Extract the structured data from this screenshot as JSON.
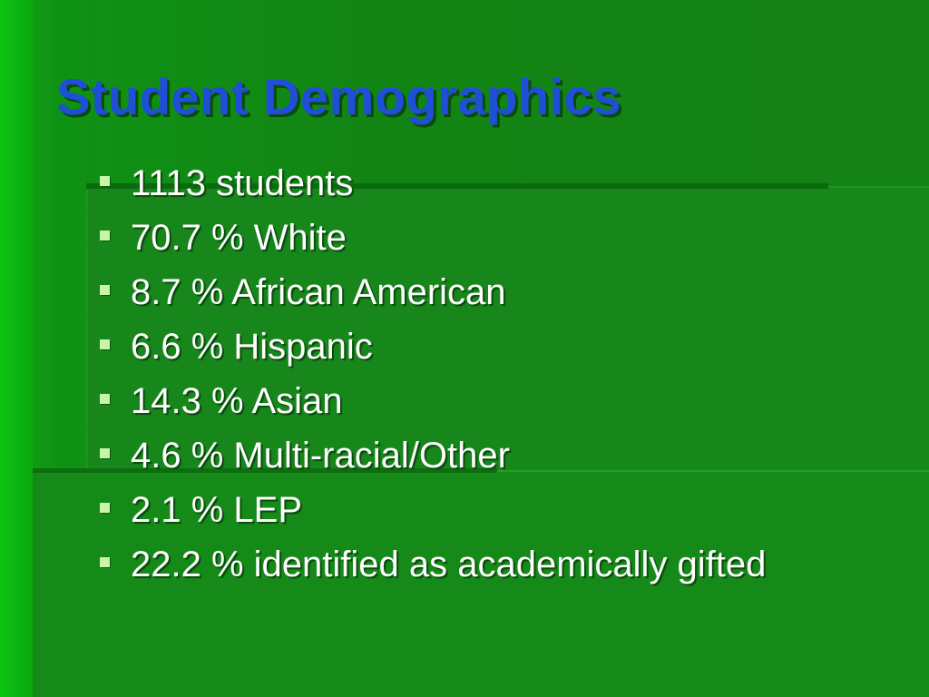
{
  "slide": {
    "title": "Student Demographics",
    "bullets": [
      "1113 students",
      "70.7 % White",
      "8.7 % African American",
      "6.6 % Hispanic",
      "14.3 % Asian",
      "4.6 % Multi-racial/Other",
      "2.1 % LEP",
      "22.2 % identified as academically gifted"
    ]
  },
  "colors": {
    "background": "#148216",
    "title": "#1f4fd6",
    "text": "#ffffff",
    "bullet": "#c8f5a8"
  },
  "icons": {
    "bullet": "square-bullet-icon"
  }
}
